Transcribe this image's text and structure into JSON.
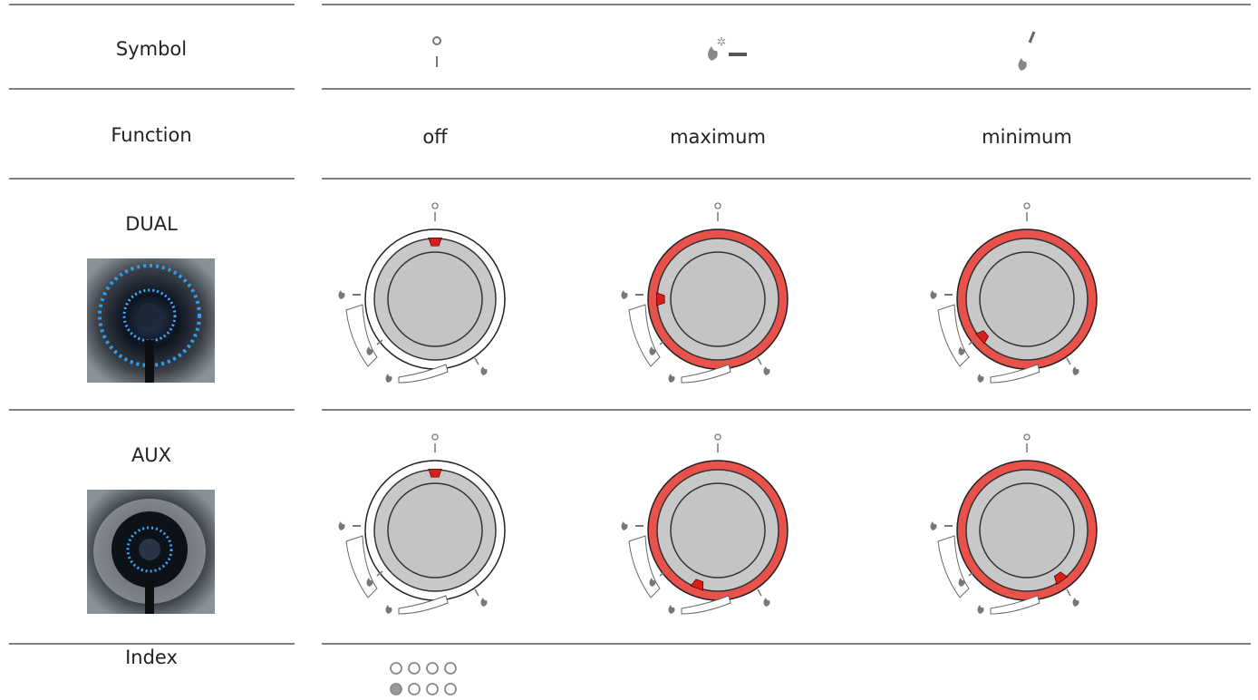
{
  "table": {
    "rows": [
      {
        "label": "Symbol"
      },
      {
        "label": "Function",
        "cells": [
          "off",
          "maximum",
          "minimum"
        ]
      },
      {
        "label": "DUAL"
      },
      {
        "label": "AUX"
      },
      {
        "label": "Index"
      }
    ]
  }
}
